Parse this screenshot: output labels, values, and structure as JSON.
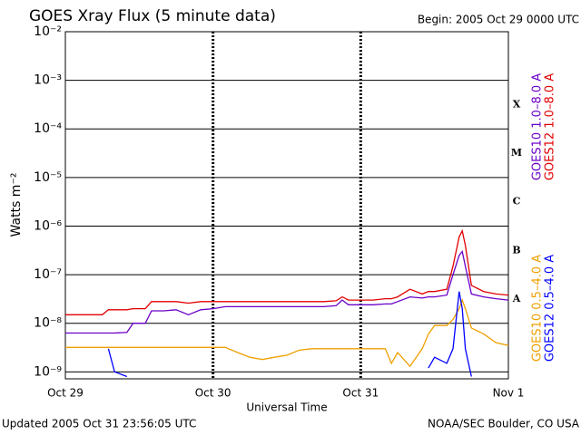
{
  "chart_data": {
    "type": "line",
    "title": "GOES Xray Flux (5 minute data)",
    "subtitle": "Begin:  2005 Oct 29 0000 UTC",
    "x_label": "Universal Time",
    "y_label": "Watts m⁻²",
    "footer_left": "Updated 2005 Oct 31 23:56:05 UTC",
    "footer_right": "NOAA/SEC Boulder, CO USA",
    "log_y": true,
    "grid": true,
    "classes": [
      "X",
      "M",
      "C",
      "B",
      "A"
    ],
    "xlim": [
      0,
      72
    ],
    "xticks": [
      {
        "value": 0,
        "label": "Oct 29"
      },
      {
        "value": 24,
        "label": "Oct 30"
      },
      {
        "value": 48,
        "label": "Oct 31"
      },
      {
        "value": 72,
        "label": "Nov 1"
      }
    ],
    "ylim": [
      7.2e-10,
      0.01
    ],
    "yticks": [
      {
        "value": 0.01,
        "label": "10⁻²"
      },
      {
        "value": 0.001,
        "label": "10⁻³"
      },
      {
        "value": 0.0001,
        "label": "10⁻⁴"
      },
      {
        "value": 1e-05,
        "label": "10⁻⁵"
      },
      {
        "value": 1e-06,
        "label": "10⁻⁶"
      },
      {
        "value": 1e-07,
        "label": "10⁻⁷"
      },
      {
        "value": 1e-08,
        "label": "10⁻⁸"
      },
      {
        "value": 1e-09,
        "label": "10⁻⁹"
      }
    ],
    "x": [
      0,
      2,
      4,
      6,
      7,
      8,
      10,
      11,
      13,
      14,
      16,
      18,
      20,
      22,
      24,
      26,
      28,
      30,
      32,
      34,
      36,
      38,
      40,
      42,
      44,
      45,
      46,
      48,
      50,
      52,
      53,
      54,
      56,
      58,
      59,
      60,
      62,
      63,
      64,
      64.5,
      65,
      66,
      68,
      70,
      72
    ],
    "series": [
      {
        "name": "GOES10 1.0–8.0 A",
        "color": "#6a00c8",
        "values": [
          6.3e-09,
          6.3e-09,
          6.3e-09,
          6.3e-09,
          6.3e-09,
          6.3e-09,
          6.5e-09,
          1e-08,
          1e-08,
          1.8e-08,
          1.8e-08,
          1.9e-08,
          1.5e-08,
          1.9e-08,
          2e-08,
          2.2e-08,
          2.2e-08,
          2.2e-08,
          2.2e-08,
          2.2e-08,
          2.2e-08,
          2.2e-08,
          2.2e-08,
          2.2e-08,
          2.3e-08,
          3e-08,
          2.4e-08,
          2.4e-08,
          2.4e-08,
          2.5e-08,
          2.5e-08,
          2.8e-08,
          3.5e-08,
          3.3e-08,
          3.5e-08,
          3.5e-08,
          3.8e-08,
          1e-07,
          2.5e-07,
          3e-07,
          1.5e-07,
          4e-08,
          3.5e-08,
          3.2e-08,
          3e-08
        ]
      },
      {
        "name": "GOES12 1.0–8.0 A",
        "color": "#e00000",
        "values": [
          1.5e-08,
          1.5e-08,
          1.5e-08,
          1.5e-08,
          1.9e-08,
          1.9e-08,
          1.9e-08,
          2e-08,
          2e-08,
          2.8e-08,
          2.8e-08,
          2.8e-08,
          2.6e-08,
          2.8e-08,
          2.8e-08,
          2.8e-08,
          2.8e-08,
          2.8e-08,
          2.8e-08,
          2.8e-08,
          2.8e-08,
          2.8e-08,
          2.8e-08,
          2.8e-08,
          2.9e-08,
          3.5e-08,
          3e-08,
          3e-08,
          3e-08,
          3.2e-08,
          3.2e-08,
          3.5e-08,
          5e-08,
          4e-08,
          4.5e-08,
          4.5e-08,
          5e-08,
          1.5e-07,
          6e-07,
          8e-07,
          4e-07,
          6e-08,
          4.5e-08,
          4e-08,
          3.8e-08
        ]
      },
      {
        "name": "GOES10 0.5–4.0 A",
        "color": "#f0a000",
        "values": [
          3.2e-09,
          3.2e-09,
          3.2e-09,
          3.2e-09,
          3.2e-09,
          3.2e-09,
          3.2e-09,
          3.2e-09,
          3.2e-09,
          3.2e-09,
          3.2e-09,
          3.2e-09,
          3.2e-09,
          3.2e-09,
          3.2e-09,
          3.2e-09,
          2.5e-09,
          2e-09,
          1.8e-09,
          2e-09,
          2.2e-09,
          2.8e-09,
          3e-09,
          3e-09,
          3e-09,
          3e-09,
          3e-09,
          3e-09,
          3e-09,
          3e-09,
          1.5e-09,
          2.5e-09,
          1.3e-09,
          3e-09,
          6e-09,
          9e-09,
          9e-09,
          1.2e-08,
          2e-08,
          3e-08,
          2e-08,
          8e-09,
          6e-09,
          4e-09,
          3.5e-09
        ]
      },
      {
        "name": "GOES12 0.5–4.0 A",
        "color": "#0000ff",
        "values": [
          null,
          null,
          null,
          null,
          3e-09,
          1e-09,
          8e-10,
          null,
          null,
          null,
          null,
          null,
          null,
          null,
          null,
          null,
          null,
          null,
          null,
          null,
          null,
          null,
          null,
          null,
          null,
          null,
          null,
          null,
          null,
          null,
          null,
          null,
          null,
          null,
          1.2e-09,
          2e-09,
          1.5e-09,
          3e-09,
          4.5e-08,
          2e-08,
          3e-09,
          8e-10,
          null,
          null,
          null
        ]
      }
    ]
  }
}
